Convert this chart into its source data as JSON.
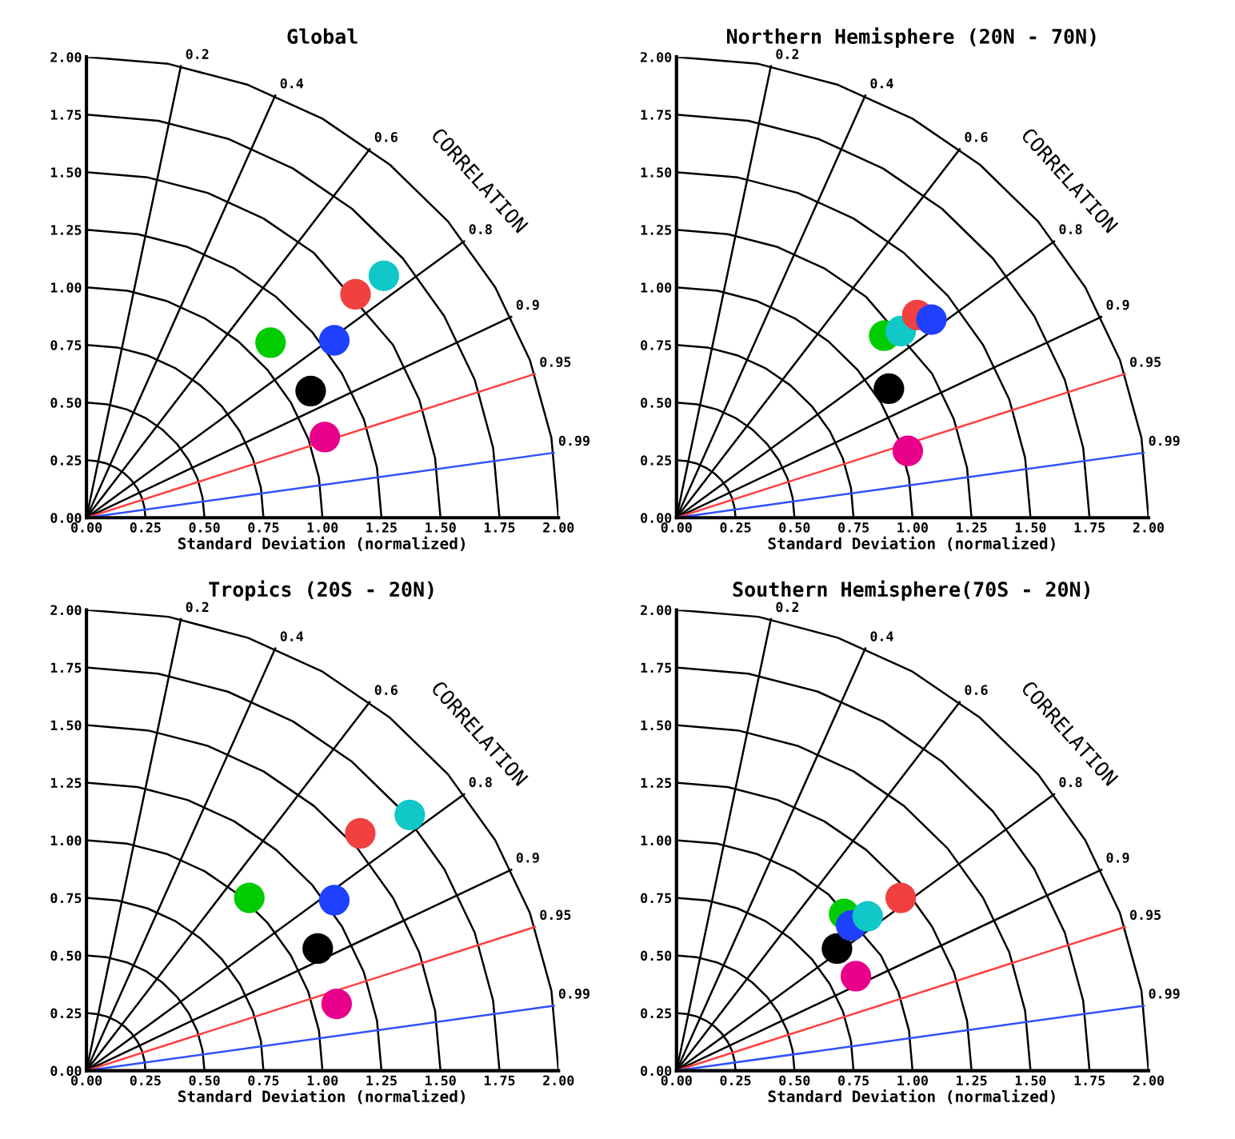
{
  "chart_data": [
    {
      "type": "scatter",
      "title": "Global",
      "xlabel": "Standard Deviation (normalized)",
      "annotations": [
        "CORRELATION"
      ],
      "xlim": [
        0,
        2
      ],
      "ylim": [
        0,
        2
      ],
      "xticks": [
        {
          "value": 0,
          "label": "0.00"
        },
        {
          "value": 0.25,
          "label": "0.25"
        },
        {
          "value": 0.5,
          "label": "0.50"
        },
        {
          "value": 0.75,
          "label": "0.75"
        },
        {
          "value": 1,
          "label": "1.00"
        },
        {
          "value": 1.25,
          "label": "1.25"
        },
        {
          "value": 1.5,
          "label": "1.50"
        },
        {
          "value": 1.75,
          "label": "1.75"
        },
        {
          "value": 2,
          "label": "2.00"
        }
      ],
      "yticks": [
        {
          "value": 0,
          "label": "0.00"
        },
        {
          "value": 0.25,
          "label": "0.25"
        },
        {
          "value": 0.5,
          "label": "0.50"
        },
        {
          "value": 0.75,
          "label": "0.75"
        },
        {
          "value": 1,
          "label": "1.00"
        },
        {
          "value": 1.25,
          "label": "1.25"
        },
        {
          "value": 1.5,
          "label": "1.50"
        },
        {
          "value": 1.75,
          "label": "1.75"
        },
        {
          "value": 2,
          "label": "2.00"
        }
      ],
      "series": [
        {
          "type": "line",
          "color": "#000000",
          "x": [
            0.25,
            0.246,
            0.235,
            0.217,
            0.192,
            0.161,
            0.125,
            0.086,
            0.043,
            0
          ],
          "values": [
            0,
            0.043,
            0.086,
            0.125,
            0.161,
            0.192,
            0.217,
            0.235,
            0.246,
            0.25
          ]
        },
        {
          "type": "line",
          "color": "#000000",
          "x": [
            0.5,
            0.492,
            0.47,
            0.433,
            0.383,
            0.321,
            0.25,
            0.171,
            0.087,
            0
          ],
          "values": [
            0,
            0.087,
            0.171,
            0.25,
            0.321,
            0.383,
            0.433,
            0.47,
            0.492,
            0.5
          ]
        },
        {
          "type": "line",
          "color": "#000000",
          "x": [
            0.75,
            0.739,
            0.705,
            0.65,
            0.575,
            0.482,
            0.375,
            0.257,
            0.13,
            0
          ],
          "values": [
            0,
            0.13,
            0.257,
            0.375,
            0.482,
            0.575,
            0.65,
            0.705,
            0.739,
            0.75
          ]
        },
        {
          "type": "line",
          "color": "#000000",
          "x": [
            1,
            0.985,
            0.94,
            0.866,
            0.766,
            0.643,
            0.5,
            0.342,
            0.174,
            0
          ],
          "values": [
            0,
            0.174,
            0.342,
            0.5,
            0.643,
            0.766,
            0.866,
            0.94,
            0.985,
            1
          ]
        },
        {
          "type": "line",
          "color": "#000000",
          "x": [
            1.25,
            1.231,
            1.175,
            1.083,
            0.958,
            0.804,
            0.625,
            0.428,
            0.217,
            0
          ],
          "values": [
            0,
            0.217,
            0.428,
            0.625,
            0.804,
            0.958,
            1.083,
            1.175,
            1.231,
            1.25
          ]
        },
        {
          "type": "line",
          "color": "#000000",
          "x": [
            1.5,
            1.477,
            1.41,
            1.299,
            0.964,
            0.75,
            0.513,
            0.26,
            0
          ],
          "values": [
            0,
            0.26,
            0.513,
            0.75,
            1.149,
            1.299,
            1.41,
            1.477,
            1.5
          ]
        },
        {
          "type": "line",
          "color": "#000000",
          "x": [
            1.75,
            1.723,
            1.645,
            1.516,
            1.341,
            1.125,
            0.875,
            0.599,
            0.304,
            0
          ],
          "values": [
            0,
            0.304,
            0.599,
            0.875,
            1.125,
            1.341,
            1.516,
            1.645,
            1.723,
            1.75
          ]
        },
        {
          "type": "line",
          "color": "#000000",
          "x": [
            2,
            1.97,
            1.879,
            1.732,
            1.532,
            1.286,
            1,
            0.684,
            0.347,
            0
          ],
          "values": [
            0,
            0.347,
            0.684,
            1,
            1.286,
            1.532,
            1.732,
            1.879,
            1.97,
            2
          ]
        },
        {
          "type": "line",
          "name": "0.2",
          "color": "#000000",
          "x": [
            0,
            0.4
          ],
          "values": [
            0,
            1.96
          ]
        },
        {
          "type": "line",
          "name": "0.4",
          "color": "#000000",
          "x": [
            0,
            0.8
          ],
          "values": [
            0,
            1.833
          ]
        },
        {
          "type": "line",
          "name": "0.6",
          "color": "#000000",
          "x": [
            0,
            1.2
          ],
          "values": [
            0,
            1.6
          ]
        },
        {
          "type": "line",
          "name": "0.8",
          "color": "#000000",
          "x": [
            0,
            1.6
          ],
          "values": [
            0,
            1.2
          ]
        },
        {
          "type": "line",
          "name": "0.9",
          "color": "#000000",
          "x": [
            0,
            1.8
          ],
          "values": [
            0,
            0.872
          ]
        },
        {
          "type": "line",
          "name": "0.95",
          "color": "#ff4040",
          "x": [
            0,
            1.9
          ],
          "values": [
            0,
            0.624
          ]
        },
        {
          "type": "line",
          "name": "0.99",
          "color": "#3050ff",
          "x": [
            0,
            1.98
          ],
          "values": [
            0,
            0.282
          ]
        },
        {
          "marker": "circle",
          "x": [
            1.01,
            0.95,
            0.78,
            1.05,
            1.14,
            1.26
          ],
          "values": [
            0.35,
            0.55,
            0.76,
            0.77,
            0.97,
            1.05
          ],
          "colors": [
            "#e8008a",
            "#000000",
            "#00cc00",
            "#2040ff",
            "#f04040",
            "#10c8c8"
          ]
        }
      ]
    },
    {
      "type": "scatter",
      "title": "Northern Hemisphere (20N - 70N)",
      "xlabel": "Standard Deviation (normalized)",
      "annotations": [
        "CORRELATION"
      ],
      "xlim": [
        0,
        2
      ],
      "ylim": [
        0,
        2
      ],
      "xticks": [
        {
          "value": 0,
          "label": "0.00"
        },
        {
          "value": 0.25,
          "label": "0.25"
        },
        {
          "value": 0.5,
          "label": "0.50"
        },
        {
          "value": 0.75,
          "label": "0.75"
        },
        {
          "value": 1,
          "label": "1.00"
        },
        {
          "value": 1.25,
          "label": "1.25"
        },
        {
          "value": 1.5,
          "label": "1.50"
        },
        {
          "value": 1.75,
          "label": "1.75"
        },
        {
          "value": 2,
          "label": "2.00"
        }
      ],
      "yticks": [
        {
          "value": 0,
          "label": "0.00"
        },
        {
          "value": 0.25,
          "label": "0.25"
        },
        {
          "value": 0.5,
          "label": "0.50"
        },
        {
          "value": 0.75,
          "label": "0.75"
        },
        {
          "value": 1,
          "label": "1.00"
        },
        {
          "value": 1.25,
          "label": "1.25"
        },
        {
          "value": 1.5,
          "label": "1.50"
        },
        {
          "value": 1.75,
          "label": "1.75"
        },
        {
          "value": 2,
          "label": "2.00"
        }
      ],
      "series": [
        {
          "type": "line",
          "color": "#000000",
          "x": [
            0.25,
            0.246,
            0.235,
            0.217,
            0.192,
            0.161,
            0.125,
            0.086,
            0.043,
            0
          ],
          "values": [
            0,
            0.043,
            0.086,
            0.125,
            0.161,
            0.192,
            0.217,
            0.235,
            0.246,
            0.25
          ]
        },
        {
          "type": "line",
          "color": "#000000",
          "x": [
            0.5,
            0.492,
            0.47,
            0.433,
            0.383,
            0.321,
            0.25,
            0.171,
            0.087,
            0
          ],
          "values": [
            0,
            0.087,
            0.171,
            0.25,
            0.321,
            0.383,
            0.433,
            0.47,
            0.492,
            0.5
          ]
        },
        {
          "type": "line",
          "color": "#000000",
          "x": [
            0.75,
            0.739,
            0.705,
            0.65,
            0.575,
            0.482,
            0.375,
            0.257,
            0.13,
            0
          ],
          "values": [
            0,
            0.13,
            0.257,
            0.375,
            0.482,
            0.575,
            0.65,
            0.705,
            0.739,
            0.75
          ]
        },
        {
          "type": "line",
          "color": "#000000",
          "x": [
            1,
            0.985,
            0.94,
            0.866,
            0.766,
            0.643,
            0.5,
            0.342,
            0.174,
            0
          ],
          "values": [
            0,
            0.174,
            0.342,
            0.5,
            0.643,
            0.766,
            0.866,
            0.94,
            0.985,
            1
          ]
        },
        {
          "type": "line",
          "color": "#000000",
          "x": [
            1.25,
            1.231,
            1.175,
            1.083,
            0.804,
            0.625,
            0.428,
            0.217,
            0
          ],
          "values": [
            0,
            0.217,
            0.428,
            0.625,
            0.958,
            1.083,
            1.175,
            1.231,
            1.25
          ]
        },
        {
          "type": "line",
          "color": "#000000",
          "x": [
            1.5,
            1.477,
            1.41,
            1.299,
            1.149,
            0.964,
            0.75,
            0.513,
            0.26,
            0
          ],
          "values": [
            0,
            0.26,
            0.513,
            0.75,
            0.964,
            1.149,
            1.299,
            1.41,
            1.477,
            1.5
          ]
        },
        {
          "type": "line",
          "color": "#000000",
          "x": [
            1.75,
            1.723,
            1.645,
            1.516,
            1.341,
            1.125,
            0.875,
            0.599,
            0.304,
            0
          ],
          "values": [
            0,
            0.304,
            0.599,
            0.875,
            1.125,
            1.341,
            1.516,
            1.645,
            1.723,
            1.75
          ]
        },
        {
          "type": "line",
          "color": "#000000",
          "x": [
            2,
            1.97,
            1.879,
            1.732,
            1.532,
            1.286,
            1,
            0.684,
            0.347,
            0
          ],
          "values": [
            0,
            0.347,
            0.684,
            1,
            1.286,
            1.532,
            1.732,
            1.879,
            1.97,
            2
          ]
        },
        {
          "type": "line",
          "name": "0.2",
          "color": "#000000",
          "x": [
            0,
            0.4
          ],
          "values": [
            0,
            1.96
          ]
        },
        {
          "type": "line",
          "name": "0.4",
          "color": "#000000",
          "x": [
            0,
            0.8
          ],
          "values": [
            0,
            1.833
          ]
        },
        {
          "type": "line",
          "name": "0.6",
          "color": "#000000",
          "x": [
            0,
            1.2
          ],
          "values": [
            0,
            1.6
          ]
        },
        {
          "type": "line",
          "name": "0.8",
          "color": "#000000",
          "x": [
            0,
            1.6
          ],
          "values": [
            0,
            1.2
          ]
        },
        {
          "type": "line",
          "name": "0.9",
          "color": "#000000",
          "x": [
            0,
            1.8
          ],
          "values": [
            0,
            0.872
          ]
        },
        {
          "type": "line",
          "name": "0.95",
          "color": "#ff4040",
          "x": [
            0,
            1.9
          ],
          "values": [
            0,
            0.624
          ]
        },
        {
          "type": "line",
          "name": "0.99",
          "color": "#3050ff",
          "x": [
            0,
            1.98
          ],
          "values": [
            0,
            0.282
          ]
        },
        {
          "marker": "circle",
          "x": [
            0.98,
            0.9,
            0.88,
            0.95,
            1.02,
            1.08
          ],
          "values": [
            0.29,
            0.56,
            0.79,
            0.81,
            0.88,
            0.86
          ],
          "colors": [
            "#e8008a",
            "#000000",
            "#00cc00",
            "#10c8c8",
            "#f04040",
            "#2040ff"
          ]
        }
      ]
    },
    {
      "type": "scatter",
      "title": "Tropics (20S - 20N)",
      "xlabel": "Standard Deviation (normalized)",
      "annotations": [
        "CORRELATION"
      ],
      "xlim": [
        0,
        2
      ],
      "ylim": [
        0,
        2
      ],
      "xticks": [
        {
          "value": 0,
          "label": "0.00"
        },
        {
          "value": 0.25,
          "label": "0.25"
        },
        {
          "value": 0.5,
          "label": "0.50"
        },
        {
          "value": 0.75,
          "label": "0.75"
        },
        {
          "value": 1,
          "label": "1.00"
        },
        {
          "value": 1.25,
          "label": "1.25"
        },
        {
          "value": 1.5,
          "label": "1.50"
        },
        {
          "value": 1.75,
          "label": "1.75"
        },
        {
          "value": 2,
          "label": "2.00"
        }
      ],
      "yticks": [
        {
          "value": 0,
          "label": "0.00"
        },
        {
          "value": 0.25,
          "label": "0.25"
        },
        {
          "value": 0.5,
          "label": "0.50"
        },
        {
          "value": 0.75,
          "label": "0.75"
        },
        {
          "value": 1,
          "label": "1.00"
        },
        {
          "value": 1.25,
          "label": "1.25"
        },
        {
          "value": 1.5,
          "label": "1.50"
        },
        {
          "value": 1.75,
          "label": "1.75"
        },
        {
          "value": 2,
          "label": "2.00"
        }
      ],
      "series": [
        {
          "type": "line",
          "color": "#000000",
          "x": [
            0.25,
            0.246,
            0.235,
            0.217,
            0.192,
            0.161,
            0.125,
            0.086,
            0.043,
            0
          ],
          "values": [
            0,
            0.043,
            0.086,
            0.125,
            0.161,
            0.192,
            0.217,
            0.235,
            0.246,
            0.25
          ]
        },
        {
          "type": "line",
          "color": "#000000",
          "x": [
            0.5,
            0.492,
            0.47,
            0.433,
            0.383,
            0.321,
            0.25,
            0.171,
            0.087,
            0
          ],
          "values": [
            0,
            0.087,
            0.171,
            0.25,
            0.321,
            0.383,
            0.433,
            0.47,
            0.492,
            0.5
          ]
        },
        {
          "type": "line",
          "color": "#000000",
          "x": [
            0.75,
            0.739,
            0.705,
            0.65,
            0.575,
            0.482,
            0.375,
            0.257,
            0.13,
            0
          ],
          "values": [
            0,
            0.13,
            0.257,
            0.375,
            0.482,
            0.575,
            0.65,
            0.705,
            0.739,
            0.75
          ]
        },
        {
          "type": "line",
          "color": "#000000",
          "x": [
            1,
            0.985,
            0.94,
            0.866,
            0.766,
            0.643,
            0.5,
            0.342,
            0.174,
            0
          ],
          "values": [
            0,
            0.174,
            0.342,
            0.5,
            0.643,
            0.766,
            0.866,
            0.94,
            0.985,
            1
          ]
        },
        {
          "type": "line",
          "color": "#000000",
          "x": [
            1.25,
            1.231,
            1.175,
            1.083,
            0.958,
            0.804,
            0.625,
            0.428,
            0.217,
            0
          ],
          "values": [
            0,
            0.217,
            0.428,
            0.625,
            0.804,
            0.958,
            1.083,
            1.175,
            1.231,
            1.25
          ]
        },
        {
          "type": "line",
          "color": "#000000",
          "x": [
            1.5,
            1.477,
            1.41,
            1.299,
            1.149,
            0.964,
            0.75,
            0.513,
            0.26,
            0
          ],
          "values": [
            0,
            0.26,
            0.513,
            0.75,
            0.964,
            1.149,
            1.299,
            1.41,
            1.477,
            1.5
          ]
        },
        {
          "type": "line",
          "color": "#000000",
          "x": [
            1.75,
            1.723,
            1.645,
            1.516,
            1.341,
            1.125,
            0.875,
            0.599,
            0.304,
            0
          ],
          "values": [
            0,
            0.304,
            0.599,
            0.875,
            1.125,
            1.341,
            1.516,
            1.645,
            1.723,
            1.75
          ]
        },
        {
          "type": "line",
          "color": "#000000",
          "x": [
            2,
            1.97,
            1.879,
            1.732,
            1.532,
            1.286,
            1,
            0.684,
            0.347,
            0
          ],
          "values": [
            0,
            0.347,
            0.684,
            1,
            1.286,
            1.532,
            1.732,
            1.879,
            1.97,
            2
          ]
        },
        {
          "type": "line",
          "name": "0.2",
          "color": "#000000",
          "x": [
            0,
            0.4
          ],
          "values": [
            0,
            1.96
          ]
        },
        {
          "type": "line",
          "name": "0.4",
          "color": "#000000",
          "x": [
            0,
            0.8
          ],
          "values": [
            0,
            1.833
          ]
        },
        {
          "type": "line",
          "name": "0.6",
          "color": "#000000",
          "x": [
            0,
            1.2
          ],
          "values": [
            0,
            1.6
          ]
        },
        {
          "type": "line",
          "name": "0.8",
          "color": "#000000",
          "x": [
            0,
            1.6
          ],
          "values": [
            0,
            1.2
          ]
        },
        {
          "type": "line",
          "name": "0.9",
          "color": "#000000",
          "x": [
            0,
            1.8
          ],
          "values": [
            0,
            0.872
          ]
        },
        {
          "type": "line",
          "name": "0.95",
          "color": "#ff4040",
          "x": [
            0,
            1.9
          ],
          "values": [
            0,
            0.624
          ]
        },
        {
          "type": "line",
          "name": "0.99",
          "color": "#3050ff",
          "x": [
            0,
            1.98
          ],
          "values": [
            0,
            0.282
          ]
        },
        {
          "marker": "circle",
          "x": [
            1.06,
            0.98,
            0.69,
            1.05,
            1.16,
            1.37
          ],
          "values": [
            0.29,
            0.53,
            0.75,
            0.74,
            1.03,
            1.11
          ],
          "colors": [
            "#e8008a",
            "#000000",
            "#00cc00",
            "#2040ff",
            "#f04040",
            "#10c8c8"
          ]
        }
      ]
    },
    {
      "type": "scatter",
      "title": "Southern Hemisphere(70S - 20N)",
      "xlabel": "Standard Deviation (normalized)",
      "annotations": [
        "CORRELATION"
      ],
      "xlim": [
        0,
        2
      ],
      "ylim": [
        0,
        2
      ],
      "xticks": [
        {
          "value": 0,
          "label": "0.00"
        },
        {
          "value": 0.25,
          "label": "0.25"
        },
        {
          "value": 0.5,
          "label": "0.50"
        },
        {
          "value": 0.75,
          "label": "0.75"
        },
        {
          "value": 1,
          "label": "1.00"
        },
        {
          "value": 1.25,
          "label": "1.25"
        },
        {
          "value": 1.5,
          "label": "1.50"
        },
        {
          "value": 1.75,
          "label": "1.75"
        },
        {
          "value": 2,
          "label": "2.00"
        }
      ],
      "yticks": [
        {
          "value": 0,
          "label": "0.00"
        },
        {
          "value": 0.25,
          "label": "0.25"
        },
        {
          "value": 0.5,
          "label": "0.50"
        },
        {
          "value": 0.75,
          "label": "0.75"
        },
        {
          "value": 1,
          "label": "1.00"
        },
        {
          "value": 1.25,
          "label": "1.25"
        },
        {
          "value": 1.5,
          "label": "1.50"
        },
        {
          "value": 1.75,
          "label": "1.75"
        },
        {
          "value": 2,
          "label": "2.00"
        }
      ],
      "series": [
        {
          "type": "line",
          "color": "#000000",
          "x": [
            0.25,
            0.246,
            0.235,
            0.217,
            0.192,
            0.161,
            0.125,
            0.086,
            0.043,
            0
          ],
          "values": [
            0,
            0.043,
            0.086,
            0.125,
            0.161,
            0.192,
            0.217,
            0.235,
            0.246,
            0.25
          ]
        },
        {
          "type": "line",
          "color": "#000000",
          "x": [
            0.5,
            0.492,
            0.47,
            0.433,
            0.383,
            0.321,
            0.25,
            0.171,
            0.087,
            0
          ],
          "values": [
            0,
            0.087,
            0.171,
            0.25,
            0.321,
            0.383,
            0.433,
            0.47,
            0.492,
            0.5
          ]
        },
        {
          "type": "line",
          "color": "#000000",
          "x": [
            0.75,
            0.739,
            0.705,
            0.65,
            0.575,
            0.482,
            0.375,
            0.257,
            0.13,
            0
          ],
          "values": [
            0,
            0.13,
            0.257,
            0.375,
            0.482,
            0.575,
            0.65,
            0.705,
            0.739,
            0.75
          ]
        },
        {
          "type": "line",
          "color": "#000000",
          "x": [
            1,
            0.985,
            0.94,
            0.866,
            0.643,
            0.5,
            0.342,
            0.174,
            0
          ],
          "values": [
            0,
            0.174,
            0.342,
            0.5,
            0.766,
            0.866,
            0.94,
            0.985,
            1
          ]
        },
        {
          "type": "line",
          "color": "#000000",
          "x": [
            1.25,
            1.231,
            1.175,
            1.083,
            0.958,
            0.804,
            0.625,
            0.428,
            0.217,
            0
          ],
          "values": [
            0,
            0.217,
            0.428,
            0.625,
            0.804,
            0.958,
            1.083,
            1.175,
            1.231,
            1.25
          ]
        },
        {
          "type": "line",
          "color": "#000000",
          "x": [
            1.5,
            1.477,
            1.41,
            1.299,
            1.149,
            0.964,
            0.75,
            0.513,
            0.26,
            0
          ],
          "values": [
            0,
            0.26,
            0.513,
            0.75,
            0.964,
            1.149,
            1.299,
            1.41,
            1.477,
            1.5
          ]
        },
        {
          "type": "line",
          "color": "#000000",
          "x": [
            1.75,
            1.723,
            1.645,
            1.516,
            1.341,
            1.125,
            0.875,
            0.599,
            0.304,
            0
          ],
          "values": [
            0,
            0.304,
            0.599,
            0.875,
            1.125,
            1.341,
            1.516,
            1.645,
            1.723,
            1.75
          ]
        },
        {
          "type": "line",
          "color": "#000000",
          "x": [
            2,
            1.97,
            1.879,
            1.732,
            1.532,
            1.286,
            1,
            0.684,
            0.347,
            0
          ],
          "values": [
            0,
            0.347,
            0.684,
            1,
            1.286,
            1.532,
            1.732,
            1.879,
            1.97,
            2
          ]
        },
        {
          "type": "line",
          "name": "0.2",
          "color": "#000000",
          "x": [
            0,
            0.4
          ],
          "values": [
            0,
            1.96
          ]
        },
        {
          "type": "line",
          "name": "0.4",
          "color": "#000000",
          "x": [
            0,
            0.8
          ],
          "values": [
            0,
            1.833
          ]
        },
        {
          "type": "line",
          "name": "0.6",
          "color": "#000000",
          "x": [
            0,
            1.2
          ],
          "values": [
            0,
            1.6
          ]
        },
        {
          "type": "line",
          "name": "0.8",
          "color": "#000000",
          "x": [
            0,
            1.6
          ],
          "values": [
            0,
            1.2
          ]
        },
        {
          "type": "line",
          "name": "0.9",
          "color": "#000000",
          "x": [
            0,
            1.8
          ],
          "values": [
            0,
            0.872
          ]
        },
        {
          "type": "line",
          "name": "0.95",
          "color": "#ff4040",
          "x": [
            0,
            1.9
          ],
          "values": [
            0,
            0.624
          ]
        },
        {
          "type": "line",
          "name": "0.99",
          "color": "#3050ff",
          "x": [
            0,
            1.98
          ],
          "values": [
            0,
            0.282
          ]
        },
        {
          "marker": "circle",
          "x": [
            0.76,
            0.68,
            0.71,
            0.74,
            0.81,
            0.95
          ],
          "values": [
            0.41,
            0.53,
            0.68,
            0.63,
            0.67,
            0.75
          ],
          "colors": [
            "#e8008a",
            "#000000",
            "#00cc00",
            "#2040ff",
            "#10c8c8",
            "#f04040"
          ]
        }
      ]
    }
  ]
}
